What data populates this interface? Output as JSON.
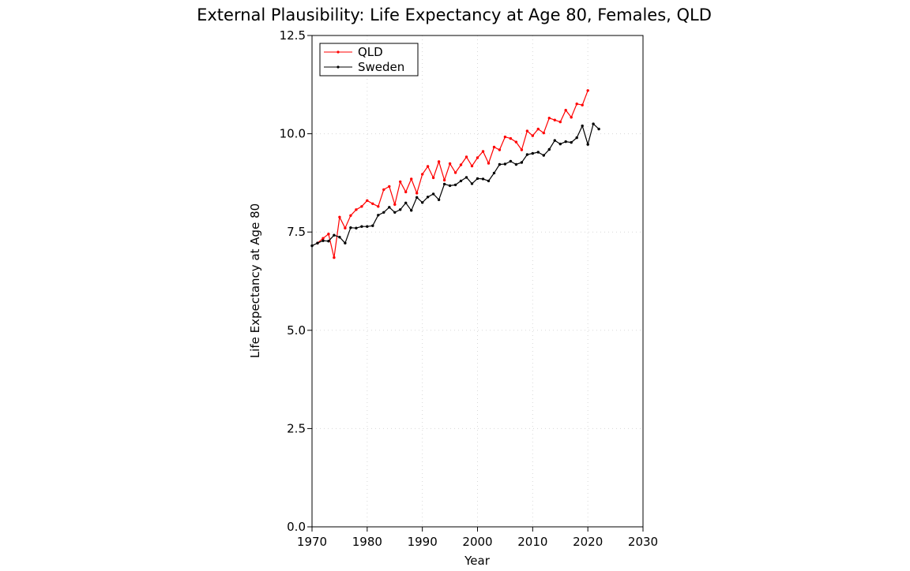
{
  "chart_data": {
    "type": "line",
    "title": "External Plausibility: Life Expectancy at Age 80, Females, QLD",
    "xlabel": "Year",
    "ylabel": "Life Expectancy at Age 80",
    "xlim": [
      1970,
      2030
    ],
    "ylim": [
      0,
      12.5
    ],
    "xticks": [
      "1970",
      "1980",
      "1990",
      "2000",
      "2010",
      "2020",
      "2030"
    ],
    "yticks": [
      "0.0",
      "2.5",
      "5.0",
      "7.5",
      "10.0",
      "12.5"
    ],
    "grid": true,
    "legend_position": "top-left",
    "series": [
      {
        "name": "QLD",
        "color": "#ff0000",
        "x": [
          1971,
          1972,
          1973,
          1974,
          1975,
          1976,
          1977,
          1978,
          1979,
          1980,
          1981,
          1982,
          1983,
          1984,
          1985,
          1986,
          1987,
          1988,
          1989,
          1990,
          1991,
          1992,
          1993,
          1994,
          1995,
          1996,
          1997,
          1998,
          1999,
          2000,
          2001,
          2002,
          2003,
          2004,
          2005,
          2006,
          2007,
          2008,
          2009,
          2010,
          2011,
          2012,
          2013,
          2014,
          2015,
          2016,
          2017,
          2018,
          2019,
          2020
        ],
        "values": [
          7.22,
          7.34,
          7.45,
          6.85,
          7.88,
          7.6,
          7.92,
          8.07,
          8.15,
          8.3,
          8.22,
          8.15,
          8.58,
          8.66,
          8.2,
          8.78,
          8.52,
          8.85,
          8.49,
          8.97,
          9.17,
          8.88,
          9.29,
          8.82,
          9.24,
          9.01,
          9.21,
          9.41,
          9.18,
          9.39,
          9.55,
          9.25,
          9.66,
          9.59,
          9.92,
          9.88,
          9.79,
          9.59,
          10.07,
          9.95,
          10.12,
          10.02,
          10.4,
          10.35,
          10.3,
          10.6,
          10.42,
          10.76,
          10.73,
          11.1
        ]
      },
      {
        "name": "Sweden",
        "color": "#000000",
        "x": [
          1970,
          1971,
          1972,
          1973,
          1974,
          1975,
          1976,
          1977,
          1978,
          1979,
          1980,
          1981,
          1982,
          1983,
          1984,
          1985,
          1986,
          1987,
          1988,
          1989,
          1990,
          1991,
          1992,
          1993,
          1994,
          1995,
          1996,
          1997,
          1998,
          1999,
          2000,
          2001,
          2002,
          2003,
          2004,
          2005,
          2006,
          2007,
          2008,
          2009,
          2010,
          2011,
          2012,
          2013,
          2014,
          2015,
          2016,
          2017,
          2018,
          2019,
          2020,
          2021,
          2022
        ],
        "values": [
          7.15,
          7.22,
          7.28,
          7.27,
          7.42,
          7.37,
          7.22,
          7.61,
          7.6,
          7.64,
          7.64,
          7.66,
          7.93,
          8.0,
          8.13,
          8.0,
          8.07,
          8.24,
          8.05,
          8.38,
          8.25,
          8.39,
          8.47,
          8.32,
          8.72,
          8.68,
          8.7,
          8.8,
          8.89,
          8.73,
          8.86,
          8.85,
          8.8,
          9.0,
          9.22,
          9.23,
          9.3,
          9.22,
          9.27,
          9.47,
          9.5,
          9.53,
          9.45,
          9.6,
          9.83,
          9.74,
          9.8,
          9.78,
          9.9,
          10.2,
          9.73,
          10.25,
          10.12
        ]
      }
    ]
  }
}
